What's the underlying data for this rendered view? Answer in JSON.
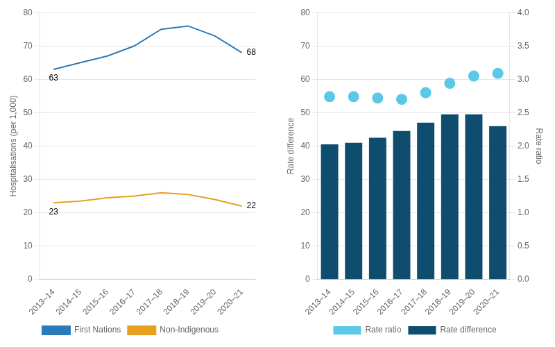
{
  "chart_data": [
    {
      "type": "line",
      "categories": [
        "2013–14",
        "2014–15",
        "2015–16",
        "2016–17",
        "2017–18",
        "2018–19",
        "2019–20",
        "2020–21"
      ],
      "series": [
        {
          "name": "First Nations",
          "color": "#2b7bba",
          "values": [
            63,
            65,
            67,
            70,
            75,
            76,
            73,
            68
          ]
        },
        {
          "name": "Non-Indigenous",
          "color": "#e8a020",
          "values": [
            23,
            23.5,
            24.5,
            25,
            26,
            25.5,
            24,
            22
          ]
        }
      ],
      "ylabel": "Hospitalisations (per 1,000)",
      "ylim": [
        0,
        80
      ],
      "yticks": [
        0,
        10,
        20,
        30,
        40,
        50,
        60,
        70,
        80
      ],
      "grid": true,
      "legend": "bottom",
      "annotations": [
        {
          "text": "63",
          "series": "First Nations",
          "category": "2013–14"
        },
        {
          "text": "68",
          "series": "First Nations",
          "category": "2020–21"
        },
        {
          "text": "23",
          "series": "Non-Indigenous",
          "category": "2013–14"
        },
        {
          "text": "22",
          "series": "Non-Indigenous",
          "category": "2020–21"
        }
      ]
    },
    {
      "type": "bar",
      "categories": [
        "2013–14",
        "2014–15",
        "2015–16",
        "2016–17",
        "2017–18",
        "2018–19",
        "2019–20",
        "2020–21"
      ],
      "series": [
        {
          "name": "Rate difference",
          "type": "bar",
          "color": "#0e4d6e",
          "values": [
            40.5,
            41,
            42.5,
            44.5,
            47,
            49.5,
            49.5,
            46
          ]
        },
        {
          "name": "Rate ratio",
          "type": "scatter",
          "marker": "circle",
          "color": "#5bc8e8",
          "axis": "y2",
          "values": [
            2.74,
            2.74,
            2.72,
            2.7,
            2.8,
            2.94,
            3.05,
            3.09
          ]
        }
      ],
      "ylabel": "Rate difference",
      "y2label": "Rate ratio",
      "ylim": [
        0,
        80
      ],
      "yticks": [
        0,
        10,
        20,
        30,
        40,
        50,
        60,
        70,
        80
      ],
      "y2lim": [
        0.0,
        4.0
      ],
      "y2ticks": [
        {
          "value": 0,
          "label": "0.0"
        },
        0.5,
        {
          "value": 1,
          "label": "1.0"
        },
        1.5,
        {
          "value": 2,
          "label": "2.0"
        },
        2.5,
        {
          "value": 3,
          "label": "3.0"
        },
        3.5,
        {
          "value": 4,
          "label": "4.0"
        }
      ],
      "grid": true,
      "legend": "bottom"
    }
  ]
}
